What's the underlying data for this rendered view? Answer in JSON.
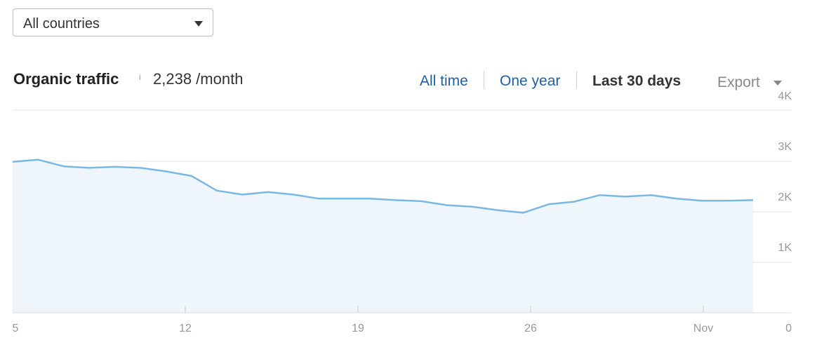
{
  "filter": {
    "country_label": "All countries"
  },
  "header": {
    "title": "Organic traffic",
    "info_glyph": "i",
    "value": "2,238 /month"
  },
  "range_tabs": [
    {
      "label": "All time",
      "active": false
    },
    {
      "label": "One year",
      "active": false
    },
    {
      "label": "Last 30 days",
      "active": true
    }
  ],
  "export_label": "Export",
  "colors": {
    "line": "#7ab8e4",
    "area": "#eef6fb",
    "grid": "#e4e4e4",
    "link": "#1f5fa6"
  },
  "chart_data": {
    "type": "area",
    "x": [
      "Oct 5",
      "Oct 6",
      "Oct 7",
      "Oct 8",
      "Oct 9",
      "Oct 10",
      "Oct 11",
      "Oct 12",
      "Oct 13",
      "Oct 14",
      "Oct 15",
      "Oct 16",
      "Oct 17",
      "Oct 18",
      "Oct 19",
      "Oct 20",
      "Oct 21",
      "Oct 22",
      "Oct 23",
      "Oct 24",
      "Oct 25",
      "Oct 26",
      "Oct 27",
      "Oct 28",
      "Oct 29",
      "Oct 30",
      "Oct 31",
      "Nov 1",
      "Nov 2",
      "Nov 3"
    ],
    "series": [
      {
        "values": [
          2990,
          3030,
          2900,
          2870,
          2890,
          2870,
          2800,
          2710,
          2420,
          2340,
          2390,
          2340,
          2260,
          2260,
          2260,
          2230,
          2210,
          2130,
          2100,
          2030,
          1980,
          2150,
          2200,
          2330,
          2300,
          2330,
          2260,
          2220,
          2220,
          2230
        ]
      }
    ],
    "x_tick_labels": [
      "5",
      "12",
      "19",
      "26",
      "Nov"
    ],
    "y_tick_labels": [
      "4K",
      "3K",
      "2K",
      "1K",
      "0"
    ],
    "ylim": [
      0,
      4000
    ],
    "grid": true,
    "title": "",
    "xlabel": "",
    "ylabel": ""
  }
}
